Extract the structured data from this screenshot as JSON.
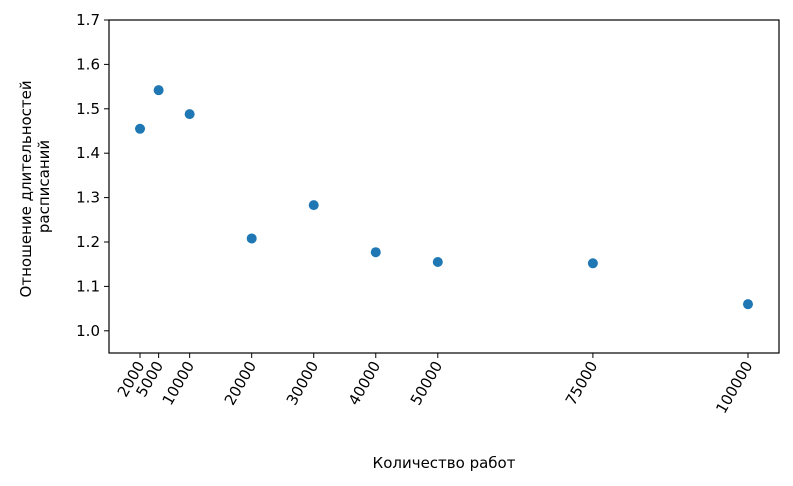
{
  "chart_data": {
    "type": "scatter",
    "title": "",
    "xlabel": "Количество работ",
    "ylabel_lines": [
      "Отношение длительностей",
      "расписаний"
    ],
    "x_ticks": [
      2000,
      5000,
      10000,
      20000,
      30000,
      40000,
      50000,
      75000,
      100000
    ],
    "y_ticks": [
      1.0,
      1.1,
      1.2,
      1.3,
      1.4,
      1.5,
      1.6,
      1.7
    ],
    "y_tick_labels": [
      "1.0",
      "1.1",
      "1.2",
      "1.3",
      "1.4",
      "1.5",
      "1.6",
      "1.7"
    ],
    "xlim": [
      -3000,
      105000
    ],
    "ylim": [
      0.95,
      1.7
    ],
    "grid": false,
    "color": "#1f77b4",
    "points": [
      {
        "x": 2000,
        "y": 1.455
      },
      {
        "x": 5000,
        "y": 1.542
      },
      {
        "x": 10000,
        "y": 1.488
      },
      {
        "x": 20000,
        "y": 1.208
      },
      {
        "x": 30000,
        "y": 1.283
      },
      {
        "x": 40000,
        "y": 1.177
      },
      {
        "x": 50000,
        "y": 1.155
      },
      {
        "x": 75000,
        "y": 1.152
      },
      {
        "x": 100000,
        "y": 1.06
      }
    ]
  }
}
